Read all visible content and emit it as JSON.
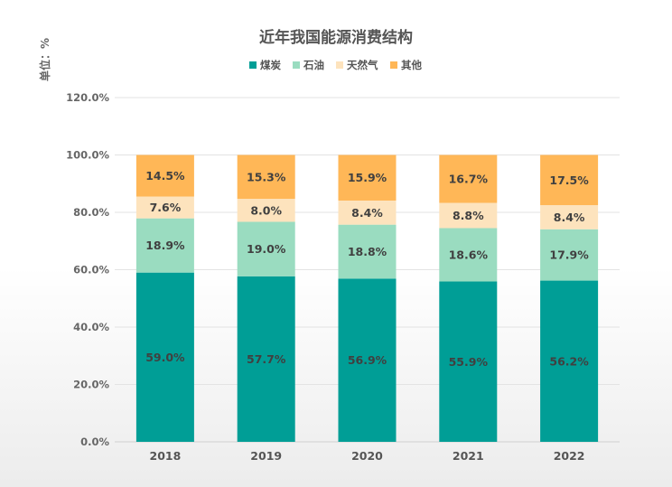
{
  "chart_data": {
    "type": "bar",
    "stacked": true,
    "title": "近年我国能源消费结构",
    "unit_label": "单位：%",
    "categories": [
      "2018",
      "2019",
      "2020",
      "2021",
      "2022"
    ],
    "series": [
      {
        "name": "煤炭",
        "color": "#009e96",
        "values": [
          59.0,
          57.7,
          56.9,
          55.9,
          56.2
        ]
      },
      {
        "name": "石油",
        "color": "#9adcc0",
        "values": [
          18.9,
          19.0,
          18.8,
          18.6,
          17.9
        ]
      },
      {
        "name": "天然气",
        "color": "#fde3bd",
        "values": [
          7.6,
          8.0,
          8.4,
          8.8,
          8.4
        ]
      },
      {
        "name": "其他",
        "color": "#ffb757",
        "values": [
          14.5,
          15.3,
          15.9,
          16.7,
          17.5
        ]
      }
    ],
    "data_labels": [
      [
        "59.0%",
        "57.7%",
        "56.9%",
        "55.9%",
        "56.2%"
      ],
      [
        "18.9%",
        "19.0%",
        "18.8%",
        "18.6%",
        "17.9%"
      ],
      [
        "7.6%",
        "8.0%",
        "8.4%",
        "8.8%",
        "8.4%"
      ],
      [
        "14.5%",
        "15.3%",
        "15.9%",
        "16.7%",
        "17.5%"
      ]
    ],
    "y_ticks": [
      "0.0%",
      "20.0%",
      "40.0%",
      "60.0%",
      "80.0%",
      "100.0%",
      "120.0%"
    ],
    "ylim": [
      0,
      120
    ],
    "grid": true,
    "legend_position": "top-center"
  }
}
